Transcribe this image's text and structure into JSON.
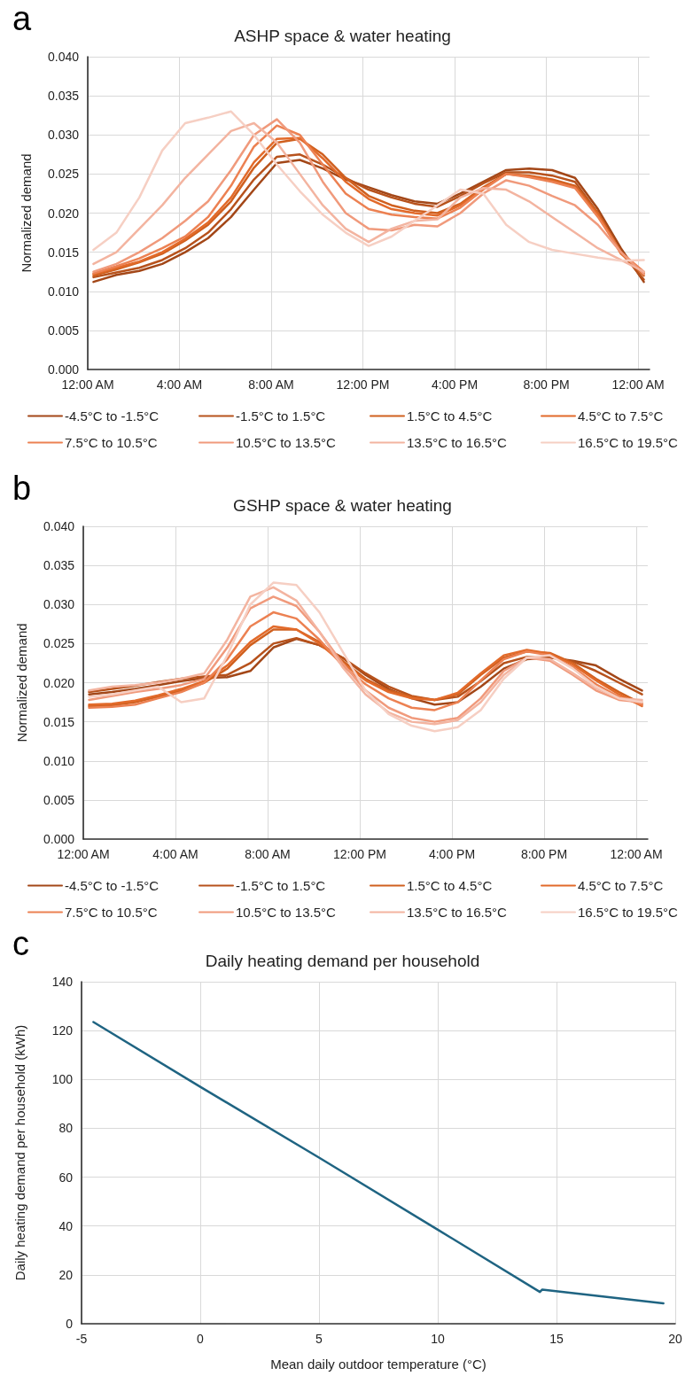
{
  "chart_data": [
    {
      "type": "line",
      "title": "ASHP space & water heating",
      "ylabel": "Normalized demand",
      "annotations": [
        "a"
      ],
      "x": [
        0.25,
        1.25,
        2.25,
        3.25,
        4.25,
        5.25,
        6.25,
        7.25,
        8.25,
        9.25,
        10.25,
        11.25,
        12.25,
        13.25,
        14.25,
        15.25,
        16.25,
        17.25,
        18.25,
        19.25,
        20.25,
        21.25,
        22.25,
        23.25,
        24.25
      ],
      "series": [
        {
          "name": "-4.5°C to -1.5°C",
          "color": "#a34718",
          "values": [
            0.0112,
            0.0121,
            0.0126,
            0.0135,
            0.015,
            0.0168,
            0.0195,
            0.023,
            0.0264,
            0.0268,
            0.0257,
            0.0243,
            0.0233,
            0.0223,
            0.0215,
            0.0212,
            0.0225,
            0.024,
            0.0255,
            0.0257,
            0.0255,
            0.0245,
            0.0205,
            0.0155,
            0.0112
          ]
        },
        {
          "name": "-1.5°C to 1.5°C",
          "color": "#b7521c",
          "values": [
            0.0118,
            0.0124,
            0.013,
            0.014,
            0.0155,
            0.0175,
            0.0205,
            0.0243,
            0.0272,
            0.0275,
            0.0262,
            0.0245,
            0.023,
            0.022,
            0.0212,
            0.0208,
            0.0222,
            0.0238,
            0.0252,
            0.0252,
            0.0248,
            0.024,
            0.02,
            0.015,
            0.0115
          ]
        },
        {
          "name": "1.5°C to 4.5°C",
          "color": "#d0601f",
          "values": [
            0.012,
            0.0128,
            0.0137,
            0.0148,
            0.0165,
            0.0185,
            0.0215,
            0.0258,
            0.029,
            0.0295,
            0.0275,
            0.0245,
            0.0222,
            0.021,
            0.0203,
            0.02,
            0.0212,
            0.0233,
            0.025,
            0.0248,
            0.0243,
            0.0235,
            0.02,
            0.015,
            0.012
          ]
        },
        {
          "name": "4.5°C to 7.5°C",
          "color": "#e26a2a",
          "values": [
            0.0122,
            0.013,
            0.0138,
            0.015,
            0.0167,
            0.0188,
            0.022,
            0.0265,
            0.0295,
            0.0296,
            0.027,
            0.024,
            0.0218,
            0.0205,
            0.02,
            0.0197,
            0.021,
            0.0232,
            0.025,
            0.0247,
            0.0241,
            0.0233,
            0.0198,
            0.0148,
            0.0123
          ]
        },
        {
          "name": "7.5°C to 10.5°C",
          "color": "#ec8152",
          "values": [
            0.0123,
            0.0132,
            0.0142,
            0.0155,
            0.017,
            0.0195,
            0.0235,
            0.0285,
            0.0312,
            0.03,
            0.0262,
            0.0225,
            0.0205,
            0.0198,
            0.0195,
            0.0193,
            0.0207,
            0.023,
            0.025,
            0.0246,
            0.024,
            0.0232,
            0.0195,
            0.015,
            0.0125
          ]
        },
        {
          "name": "10.5°C to 13.5°C",
          "color": "#f09a7c",
          "values": [
            0.0125,
            0.0135,
            0.015,
            0.0168,
            0.019,
            0.0215,
            0.0255,
            0.03,
            0.032,
            0.029,
            0.024,
            0.02,
            0.018,
            0.0178,
            0.0185,
            0.0183,
            0.02,
            0.0225,
            0.0242,
            0.0235,
            0.0222,
            0.021,
            0.0185,
            0.015,
            0.0122
          ]
        },
        {
          "name": "13.5°C to 16.5°C",
          "color": "#f3b4a0",
          "values": [
            0.0135,
            0.015,
            0.018,
            0.021,
            0.0245,
            0.0275,
            0.0305,
            0.0315,
            0.029,
            0.025,
            0.021,
            0.018,
            0.0163,
            0.018,
            0.019,
            0.0192,
            0.022,
            0.0232,
            0.023,
            0.0215,
            0.0195,
            0.0175,
            0.0155,
            0.014,
            0.0125
          ]
        },
        {
          "name": "16.5°C to 19.5°C",
          "color": "#f6cfc3",
          "values": [
            0.0153,
            0.0175,
            0.022,
            0.028,
            0.0315,
            0.0322,
            0.033,
            0.03,
            0.0262,
            0.0228,
            0.0198,
            0.0175,
            0.0158,
            0.017,
            0.019,
            0.021,
            0.023,
            0.0225,
            0.0185,
            0.0163,
            0.0153,
            0.0148,
            0.0143,
            0.0139,
            0.014
          ]
        }
      ],
      "xlim": [
        0,
        24.5
      ],
      "xticks": [
        {
          "value": 0,
          "label": "12:00 AM"
        },
        {
          "value": 4,
          "label": "4:00 AM"
        },
        {
          "value": 8,
          "label": "8:00 AM"
        },
        {
          "value": 12,
          "label": "12:00 PM"
        },
        {
          "value": 16,
          "label": "4:00 PM"
        },
        {
          "value": 20,
          "label": "8:00 PM"
        },
        {
          "value": 24,
          "label": "12:00 AM"
        }
      ],
      "ylim": [
        0,
        0.04
      ],
      "yticks": [
        {
          "value": 0,
          "label": "0.000"
        },
        {
          "value": 0.005,
          "label": "0.005"
        },
        {
          "value": 0.01,
          "label": "0.010"
        },
        {
          "value": 0.015,
          "label": "0.015"
        },
        {
          "value": 0.02,
          "label": "0.020"
        },
        {
          "value": 0.025,
          "label": "0.025"
        },
        {
          "value": 0.03,
          "label": "0.030"
        },
        {
          "value": 0.035,
          "label": "0.035"
        },
        {
          "value": 0.04,
          "label": "0.040"
        }
      ],
      "grid": true,
      "legend": "bottom",
      "marker": "none",
      "line_style": "solid"
    },
    {
      "type": "line",
      "title": "GSHP space & water heating",
      "ylabel": "Normalized demand",
      "annotations": [
        "b"
      ],
      "x": [
        0.25,
        1.25,
        2.25,
        3.25,
        4.25,
        5.25,
        6.25,
        7.25,
        8.25,
        9.25,
        10.25,
        11.25,
        12.25,
        13.25,
        14.25,
        15.25,
        16.25,
        17.25,
        18.25,
        19.25,
        20.25,
        21.25,
        22.25,
        23.25,
        24.25
      ],
      "series": [
        {
          "name": "-4.5°C to -1.5°C",
          "color": "#a34718",
          "values": [
            0.0185,
            0.0188,
            0.0192,
            0.0197,
            0.0202,
            0.0206,
            0.0207,
            0.0215,
            0.0245,
            0.0256,
            0.0248,
            0.0232,
            0.021,
            0.0192,
            0.018,
            0.0172,
            0.0175,
            0.0195,
            0.0218,
            0.023,
            0.0232,
            0.0228,
            0.0222,
            0.0205,
            0.019
          ]
        },
        {
          "name": "-1.5°C to 1.5°C",
          "color": "#b7521c",
          "values": [
            0.0188,
            0.0192,
            0.0196,
            0.0201,
            0.0205,
            0.0208,
            0.021,
            0.0225,
            0.025,
            0.0257,
            0.0248,
            0.0232,
            0.0212,
            0.0195,
            0.0183,
            0.0178,
            0.0182,
            0.0202,
            0.0225,
            0.0233,
            0.0233,
            0.0227,
            0.0215,
            0.02,
            0.0185
          ]
        },
        {
          "name": "1.5°C to 4.5°C",
          "color": "#d0601f",
          "values": [
            0.017,
            0.0171,
            0.0175,
            0.0182,
            0.019,
            0.02,
            0.0218,
            0.0248,
            0.0268,
            0.0268,
            0.0252,
            0.0228,
            0.0205,
            0.019,
            0.0182,
            0.0178,
            0.0185,
            0.021,
            0.0232,
            0.024,
            0.0238,
            0.0225,
            0.0205,
            0.0188,
            0.0173
          ]
        },
        {
          "name": "4.5°C to 7.5°C",
          "color": "#e26a2a",
          "values": [
            0.0172,
            0.0173,
            0.0177,
            0.0184,
            0.0192,
            0.0202,
            0.0222,
            0.0252,
            0.0272,
            0.0268,
            0.025,
            0.0225,
            0.0203,
            0.0188,
            0.018,
            0.0178,
            0.0187,
            0.0212,
            0.0235,
            0.0242,
            0.0237,
            0.0223,
            0.0203,
            0.0185,
            0.017
          ]
        },
        {
          "name": "7.5°C to 10.5°C",
          "color": "#ec8152",
          "values": [
            0.0168,
            0.0169,
            0.0172,
            0.018,
            0.0188,
            0.02,
            0.023,
            0.0272,
            0.029,
            0.0282,
            0.0255,
            0.0222,
            0.0198,
            0.018,
            0.0168,
            0.0165,
            0.0175,
            0.0203,
            0.023,
            0.024,
            0.0235,
            0.022,
            0.0198,
            0.0182,
            0.0172
          ]
        },
        {
          "name": "10.5°C to 13.5°C",
          "color": "#f09a7c",
          "values": [
            0.0178,
            0.0183,
            0.0188,
            0.0192,
            0.0197,
            0.0205,
            0.0245,
            0.0295,
            0.031,
            0.0298,
            0.0265,
            0.0225,
            0.019,
            0.0168,
            0.0155,
            0.015,
            0.0155,
            0.018,
            0.0215,
            0.0232,
            0.0228,
            0.021,
            0.019,
            0.0178,
            0.0175
          ]
        },
        {
          "name": "13.5°C to 16.5°C",
          "color": "#f3b4a0",
          "values": [
            0.019,
            0.0195,
            0.0197,
            0.02,
            0.0205,
            0.0212,
            0.0255,
            0.031,
            0.0322,
            0.0305,
            0.0265,
            0.022,
            0.0185,
            0.0162,
            0.015,
            0.0147,
            0.0152,
            0.0175,
            0.021,
            0.0232,
            0.023,
            0.0212,
            0.0193,
            0.018,
            0.0178
          ]
        },
        {
          "name": "16.5°C to 19.5°C",
          "color": "#f6cfc3",
          "values": [
            0.0182,
            0.0185,
            0.019,
            0.0195,
            0.0175,
            0.018,
            0.0235,
            0.03,
            0.0328,
            0.0325,
            0.029,
            0.024,
            0.019,
            0.016,
            0.0145,
            0.0138,
            0.0143,
            0.0165,
            0.0205,
            0.0232,
            0.0235,
            0.0218,
            0.0195,
            0.018,
            0.0175
          ]
        }
      ],
      "xlim": [
        0,
        24.5
      ],
      "xticks": [
        {
          "value": 0,
          "label": "12:00 AM"
        },
        {
          "value": 4,
          "label": "4:00 AM"
        },
        {
          "value": 8,
          "label": "8:00 AM"
        },
        {
          "value": 12,
          "label": "12:00 PM"
        },
        {
          "value": 16,
          "label": "4:00 PM"
        },
        {
          "value": 20,
          "label": "8:00 PM"
        },
        {
          "value": 24,
          "label": "12:00 AM"
        }
      ],
      "ylim": [
        0,
        0.04
      ],
      "yticks": [
        {
          "value": 0,
          "label": "0.000"
        },
        {
          "value": 0.005,
          "label": "0.005"
        },
        {
          "value": 0.01,
          "label": "0.010"
        },
        {
          "value": 0.015,
          "label": "0.015"
        },
        {
          "value": 0.02,
          "label": "0.020"
        },
        {
          "value": 0.025,
          "label": "0.025"
        },
        {
          "value": 0.03,
          "label": "0.030"
        },
        {
          "value": 0.035,
          "label": "0.035"
        },
        {
          "value": 0.04,
          "label": "0.040"
        }
      ],
      "grid": true,
      "legend": "bottom",
      "marker": "none",
      "line_style": "solid"
    },
    {
      "type": "line",
      "title": "Daily heating demand per household",
      "xlabel": "Mean daily outdoor temperature (°C)",
      "ylabel": "Daily heating demand per household (kWh)",
      "annotations": [
        "c"
      ],
      "x": [
        -4.5,
        0,
        5,
        10,
        14.3,
        14.4,
        19.5
      ],
      "series": [
        {
          "color": "#1f6482",
          "values": [
            123.5,
            97,
            68,
            38.5,
            13,
            14,
            8.3
          ]
        }
      ],
      "xlim": [
        -5,
        20
      ],
      "xticks": [
        -5,
        0,
        5,
        10,
        15,
        20
      ],
      "ylim": [
        0,
        140
      ],
      "yticks": [
        0,
        20,
        40,
        60,
        80,
        100,
        120,
        140
      ],
      "grid": true,
      "marker": "none",
      "line_style": "solid"
    }
  ]
}
